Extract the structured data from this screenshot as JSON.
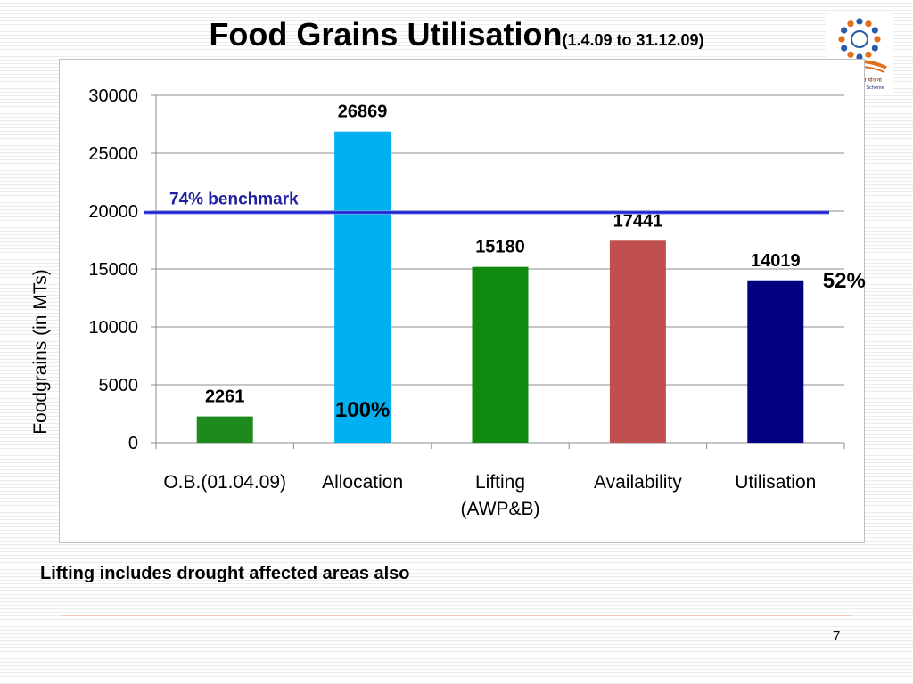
{
  "slide": {
    "title": "Food Grains Utilisation",
    "title_period": "(1.4.09 to 31.12.09)",
    "logo_text_line1": "मध्याह्न भोजन योजना",
    "logo_text_line2": "Mid Day Meal Scheme",
    "footnote": "Lifting includes drought affected areas also",
    "page_number": "7"
  },
  "colors": {
    "ob": "#1e8a1e",
    "allocation": "#00b0f0",
    "lifting": "#0f8a0f",
    "availability": "#c0504d",
    "utilisation": "#000080",
    "benchmark": "#1f1fd6",
    "benchmark_label": "#1f1fa0"
  },
  "chart_data": {
    "type": "bar",
    "categories": [
      "O.B.(01.04.09)",
      "Allocation",
      "Lifting (AWP&B)",
      "Availability",
      "Utilisation"
    ],
    "category_lines": [
      [
        "O.B.(01.04.09)"
      ],
      [
        "Allocation"
      ],
      [
        "Lifting",
        "(AWP&B)"
      ],
      [
        "Availability"
      ],
      [
        "Utilisation"
      ]
    ],
    "values": [
      2261,
      26869,
      15180,
      17441,
      14019
    ],
    "data_labels": [
      "2261",
      "26869",
      "15180",
      "17441",
      "14019"
    ],
    "ylabel": "Foodgrains (in MTs)",
    "ylim": [
      0,
      30000
    ],
    "yticks": [
      0,
      5000,
      10000,
      15000,
      20000,
      25000,
      30000
    ],
    "grid": true,
    "benchmark": {
      "value": 19883,
      "label": "74% benchmark"
    },
    "annotations": [
      {
        "text": "100%",
        "category": "Allocation"
      },
      {
        "text": "52%",
        "category": "Utilisation"
      }
    ]
  }
}
